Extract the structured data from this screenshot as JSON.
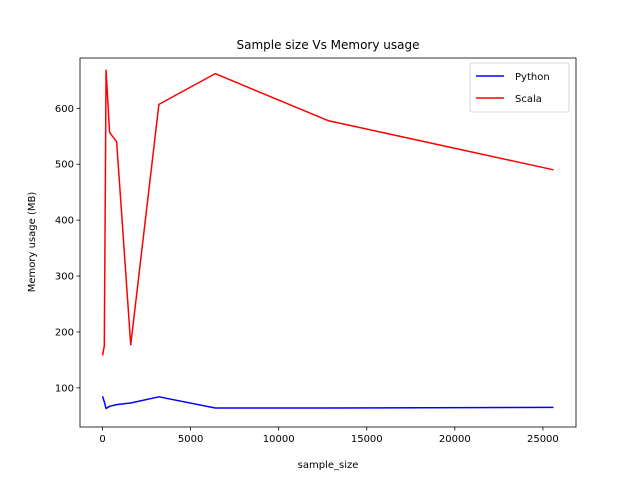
{
  "chart_data": {
    "type": "line",
    "title": "Sample size Vs Memory usage",
    "xlabel": "sample_size",
    "ylabel": "Memory usage (MB)",
    "xlim": [
      -1280,
      26880
    ],
    "ylim": [
      30,
      690
    ],
    "xticks": [
      0,
      5000,
      10000,
      15000,
      20000,
      25000
    ],
    "yticks": [
      100,
      200,
      300,
      400,
      500,
      600
    ],
    "grid": false,
    "legend_position": "top-right",
    "series": [
      {
        "name": "Python",
        "color": "#0000ff",
        "x": [
          0,
          100,
          200,
          400,
          800,
          1600,
          3200,
          6400,
          12800,
          25600
        ],
        "y": [
          85,
          75,
          63,
          67,
          70,
          73,
          84,
          64,
          64,
          65
        ]
      },
      {
        "name": "Scala",
        "color": "#ff0000",
        "x": [
          0,
          100,
          200,
          400,
          800,
          1600,
          3200,
          6400,
          12800,
          25600
        ],
        "y": [
          158,
          175,
          668,
          557,
          540,
          177,
          607,
          662,
          578,
          490
        ]
      }
    ]
  }
}
